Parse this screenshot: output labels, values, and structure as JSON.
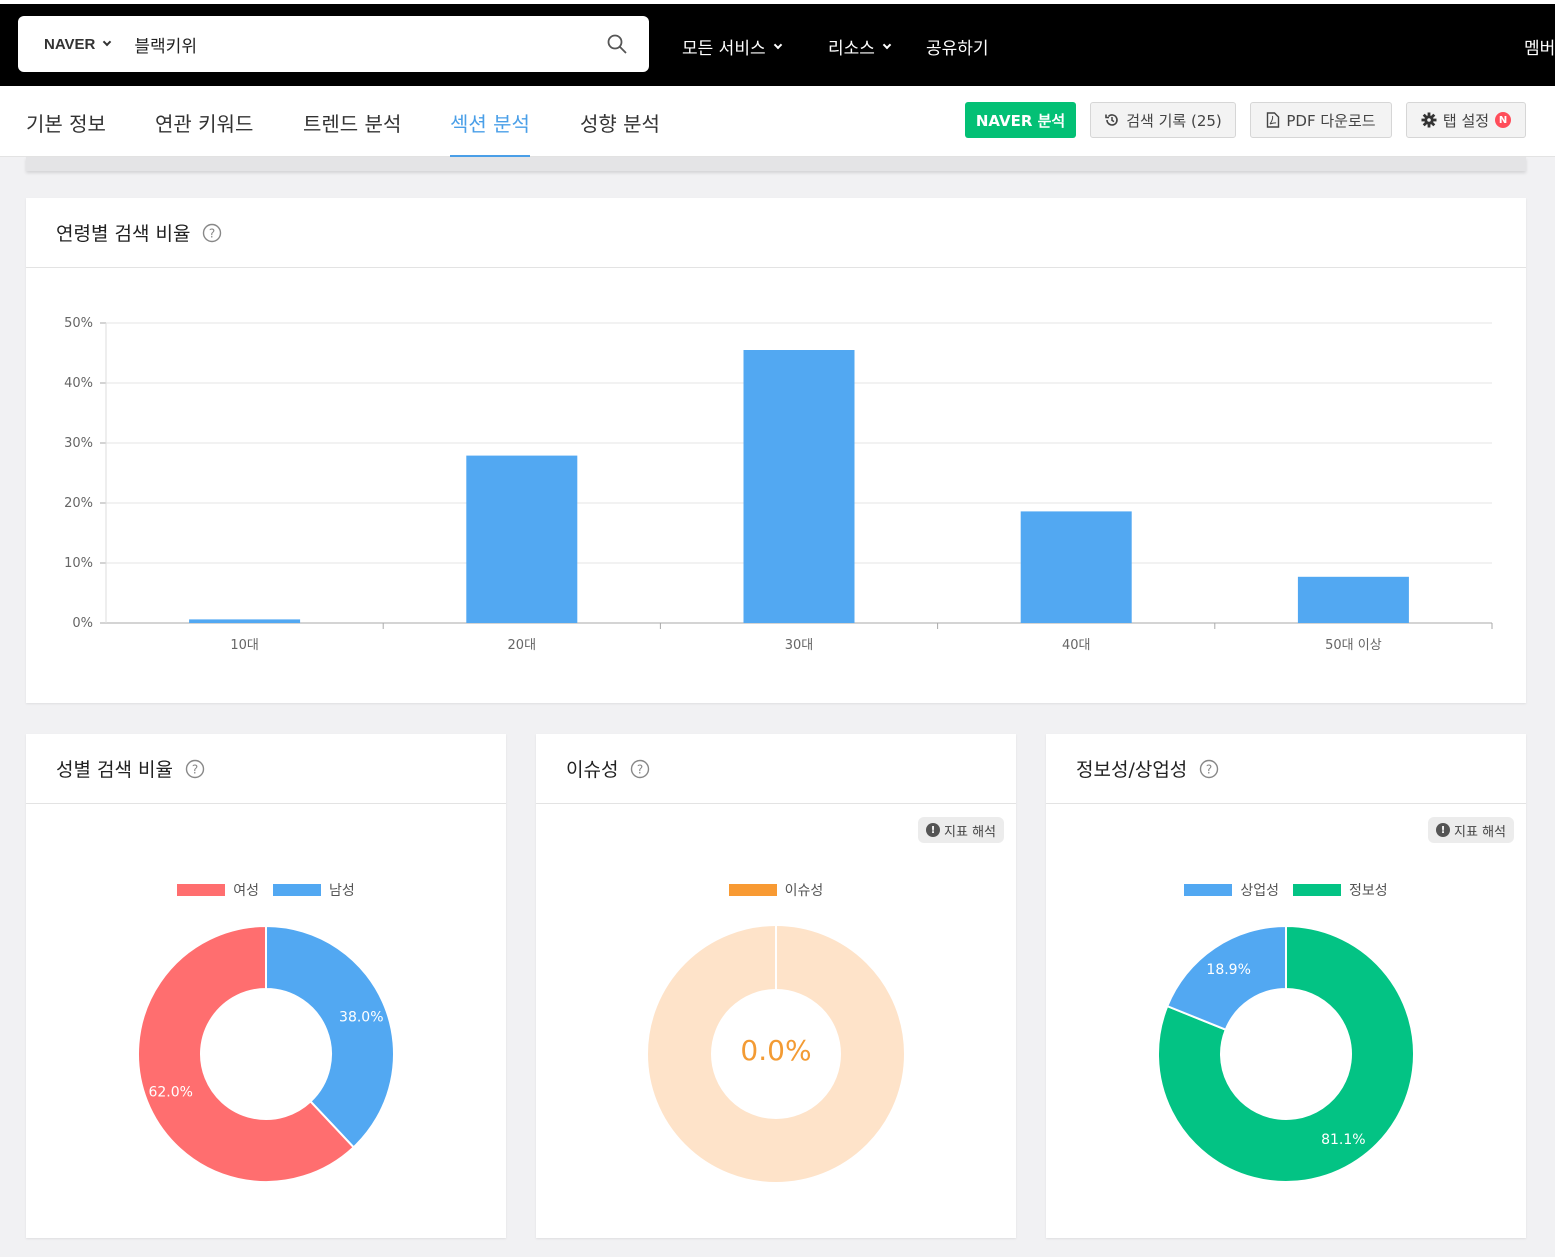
{
  "header": {
    "engine": "NAVER",
    "query": "블랙키위",
    "nav": [
      "모든 서비스",
      "리소스",
      "공유하기"
    ],
    "member": "멤버"
  },
  "tabs": [
    "기본 정보",
    "연관 키워드",
    "트렌드 분석",
    "섹션 분석",
    "성향 분석"
  ],
  "active_tab": "섹션 분석",
  "actions": {
    "naver": "NAVER 분석",
    "history": "검색 기록 (25)",
    "pdf": "PDF 다운로드",
    "settings": "탭 설정",
    "settings_badge": "N"
  },
  "age_card": {
    "title": "연령별 검색 비율"
  },
  "gender_card": {
    "title": "성별 검색 비율",
    "legend": [
      "여성",
      "남성"
    ]
  },
  "issue_card": {
    "title": "이슈성",
    "legend": [
      "이슈성"
    ],
    "hint": "지표 해석",
    "center": "0.0%"
  },
  "info_card": {
    "title": "정보성/상업성",
    "legend": [
      "상업성",
      "정보성"
    ],
    "hint": "지표 해석"
  },
  "colors": {
    "blue": "#52a8f2",
    "red": "#ff6e6f",
    "green": "#03c384",
    "orange": "#f89a33",
    "orange_light": "#fee3c9",
    "naver_green": "#03c075"
  },
  "chart_data": [
    {
      "type": "bar",
      "categories": [
        "10대",
        "20대",
        "30대",
        "40대",
        "50대 이상"
      ],
      "values": [
        0.6,
        27.9,
        45.5,
        18.6,
        7.7
      ],
      "ylim": [
        0,
        50
      ],
      "yticks": [
        "0%",
        "10%",
        "20%",
        "30%",
        "40%",
        "50%"
      ],
      "grid": true
    },
    {
      "type": "pie",
      "labels": [
        "여성",
        "남성"
      ],
      "values": [
        62.0,
        38.0
      ],
      "data_labels": [
        "62.0%",
        "38.0%"
      ]
    },
    {
      "type": "pie",
      "labels": [
        "이슈성"
      ],
      "values": [
        0.0
      ],
      "data_labels": [
        "0.0%"
      ]
    },
    {
      "type": "pie",
      "labels": [
        "상업성",
        "정보성"
      ],
      "values": [
        18.9,
        81.1
      ],
      "data_labels": [
        "18.9%",
        "81.1%"
      ]
    }
  ]
}
